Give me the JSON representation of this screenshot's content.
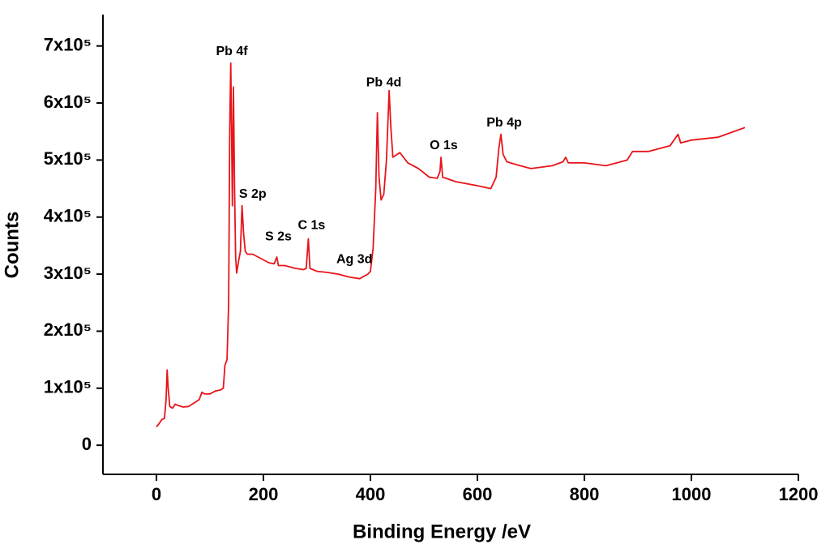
{
  "chart_data": {
    "type": "line",
    "x_label": "Binding Energy /eV",
    "y_label": "Counts",
    "xlim": [
      -100,
      1200
    ],
    "ylim": [
      -51000,
      755000
    ],
    "xticks": [
      0,
      200,
      400,
      600,
      800,
      1000,
      1200
    ],
    "yticks": [
      0,
      {
        "value": 100000,
        "label": "1x10⁵"
      },
      {
        "value": 200000,
        "label": "2x10⁵"
      },
      {
        "value": 300000,
        "label": "3x10⁵"
      },
      {
        "value": 400000,
        "label": "4x10⁵"
      },
      {
        "value": 500000,
        "label": "5x10⁵"
      },
      {
        "value": 600000,
        "label": "6x10⁵"
      },
      {
        "value": 700000,
        "label": "7x10⁵"
      }
    ],
    "series": [
      {
        "color": "#e8141a",
        "x": [
          0,
          5,
          10,
          15,
          18,
          20,
          22,
          25,
          30,
          35,
          40,
          50,
          60,
          70,
          80,
          85,
          90,
          100,
          110,
          120,
          125,
          128,
          132,
          135,
          137,
          139,
          141,
          142,
          144,
          146,
          148,
          150,
          153,
          157,
          160,
          163,
          166,
          170,
          180,
          190,
          200,
          210,
          220,
          225,
          228,
          240,
          260,
          275,
          280,
          284,
          287,
          300,
          320,
          340,
          360,
          380,
          395,
          400,
          405,
          410,
          413,
          416,
          420,
          425,
          430,
          435,
          438,
          442,
          450,
          455,
          470,
          490,
          510,
          525,
          530,
          532,
          535,
          560,
          600,
          625,
          635,
          640,
          644,
          648,
          655,
          680,
          700,
          740,
          760,
          765,
          770,
          800,
          840,
          880,
          890,
          920,
          960,
          975,
          980,
          1000,
          1050,
          1100
        ],
        "values": [
          32000,
          38000,
          45000,
          47000,
          80000,
          132000,
          100000,
          68000,
          65000,
          72000,
          70000,
          67000,
          68000,
          74000,
          80000,
          93000,
          90000,
          90000,
          95000,
          97000,
          100000,
          140000,
          150000,
          250000,
          550000,
          670000,
          500000,
          420000,
          628000,
          450000,
          330000,
          302000,
          320000,
          340000,
          420000,
          370000,
          340000,
          335000,
          335000,
          330000,
          325000,
          320000,
          318000,
          330000,
          315000,
          315000,
          310000,
          308000,
          310000,
          362000,
          310000,
          305000,
          303000,
          300000,
          295000,
          292000,
          300000,
          305000,
          345000,
          450000,
          583000,
          470000,
          430000,
          440000,
          500000,
          622000,
          560000,
          505000,
          510000,
          513000,
          495000,
          485000,
          470000,
          468000,
          480000,
          505000,
          470000,
          462000,
          455000,
          450000,
          470000,
          520000,
          545000,
          510000,
          497000,
          490000,
          485000,
          490000,
          497000,
          505000,
          495000,
          495000,
          490000,
          500000,
          515000,
          515000,
          525000,
          545000,
          530000,
          535000,
          540000,
          557000
        ]
      }
    ],
    "annotations": [
      {
        "text": "Pb 4f",
        "x": 141,
        "y": 690000
      },
      {
        "text": "S 2p",
        "x": 180,
        "y": 440000
      },
      {
        "text": "S 2s",
        "x": 228,
        "y": 365000
      },
      {
        "text": "C 1s",
        "x": 290,
        "y": 385000
      },
      {
        "text": "Ag 3d",
        "x": 370,
        "y": 325000
      },
      {
        "text": "Pb 4d",
        "x": 425,
        "y": 635000
      },
      {
        "text": "O 1s",
        "x": 537,
        "y": 525000
      },
      {
        "text": "Pb 4p",
        "x": 650,
        "y": 565000
      }
    ]
  }
}
